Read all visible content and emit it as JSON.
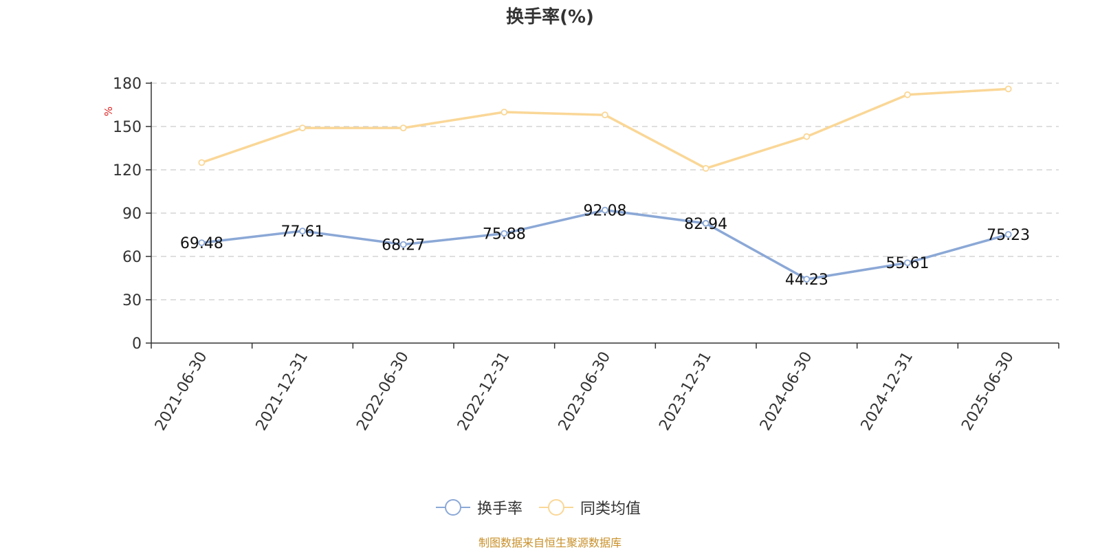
{
  "chart_data": {
    "type": "line",
    "title": "换手率(%)",
    "ylabel": "%",
    "xlabel": "",
    "ylim": [
      0,
      180
    ],
    "yticks": [
      0,
      30,
      60,
      90,
      120,
      150,
      180
    ],
    "grid": true,
    "legend_position": "bottom-center",
    "categories": [
      "2021-06-30",
      "2021-12-31",
      "2022-06-30",
      "2022-12-31",
      "2023-06-30",
      "2023-12-31",
      "2024-06-30",
      "2024-12-31",
      "2025-06-30"
    ],
    "series": [
      {
        "name": "换手率",
        "color": "#8ba8d6",
        "values": [
          69.48,
          77.61,
          68.27,
          75.88,
          92.08,
          82.94,
          44.23,
          55.61,
          75.23
        ],
        "data_labels": [
          "69.48",
          "77.61",
          "68.27",
          "75.88",
          "92.08",
          "82.94",
          "44.23",
          "55.61",
          "75.23"
        ]
      },
      {
        "name": "同类均值",
        "color": "#fad797",
        "values": [
          125,
          149,
          149,
          160,
          158,
          121,
          143,
          172,
          176
        ]
      }
    ],
    "source": "制图数据来自恒生聚源数据库",
    "source_color": "#c8902a",
    "ylabel_color": "#e02020"
  }
}
